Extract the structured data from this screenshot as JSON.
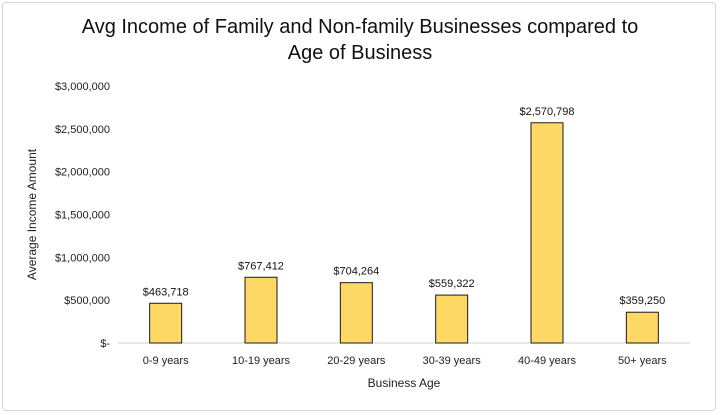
{
  "chart_data": {
    "type": "bar",
    "title_lines": [
      "Avg Income of Family and Non-family Businesses compared to",
      "Age of Business"
    ],
    "xlabel": "Business Age",
    "ylabel": "Average Income Amount",
    "categories": [
      "0-9 years",
      "10-19 years",
      "20-29 years",
      "30-39 years",
      "40-49 years",
      "50+ years"
    ],
    "values": [
      463718,
      767412,
      704264,
      559322,
      2570798,
      359250
    ],
    "data_labels": [
      "$463,718",
      "$767,412",
      "$704,264",
      "$559,322",
      "$2,570,798",
      "$359,250"
    ],
    "yticks": [
      0,
      500000,
      1000000,
      1500000,
      2000000,
      2500000,
      3000000
    ],
    "ytick_labels": [
      "$-",
      "$500,000",
      "$1,000,000",
      "$1,500,000",
      "$2,000,000",
      "$2,500,000",
      "$3,000,000"
    ],
    "ylim": [
      0,
      3000000
    ],
    "grid": false,
    "legend": "none",
    "bar_color": "#FFD966",
    "bar_edge_color": "#1a1a1a"
  }
}
